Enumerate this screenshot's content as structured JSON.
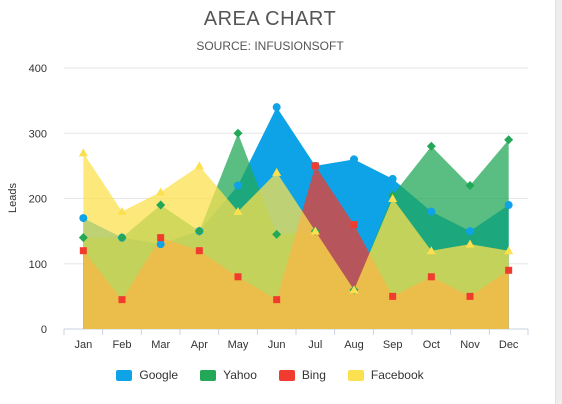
{
  "chart_data": {
    "type": "area",
    "title": "AREA CHART",
    "subtitle": "SOURCE: INFUSIONSOFT",
    "xlabel": "",
    "ylabel": "Leads",
    "categories": [
      "Jan",
      "Feb",
      "Mar",
      "Apr",
      "May",
      "Jun",
      "Jul",
      "Aug",
      "Sep",
      "Oct",
      "Nov",
      "Dec"
    ],
    "ylim": [
      0,
      400
    ],
    "yticks": [
      0,
      100,
      200,
      300,
      400
    ],
    "grid": true,
    "legend_position": "bottom",
    "series": [
      {
        "name": "Google",
        "color": "#0ea2e6",
        "marker": "circle",
        "values": [
          170,
          140,
          130,
          150,
          220,
          340,
          250,
          260,
          230,
          180,
          150,
          190
        ]
      },
      {
        "name": "Yahoo",
        "color": "#23a858",
        "marker": "diamond",
        "values": [
          140,
          140,
          190,
          150,
          300,
          145,
          150,
          60,
          205,
          280,
          220,
          290
        ]
      },
      {
        "name": "Bing",
        "color": "#f03b2e",
        "marker": "square",
        "values": [
          120,
          45,
          140,
          120,
          80,
          45,
          250,
          160,
          50,
          80,
          50,
          90
        ]
      },
      {
        "name": "Facebook",
        "color": "#fbe04f",
        "marker": "triangle",
        "values": [
          270,
          180,
          210,
          250,
          180,
          240,
          150,
          60,
          200,
          120,
          130,
          120
        ]
      }
    ]
  }
}
